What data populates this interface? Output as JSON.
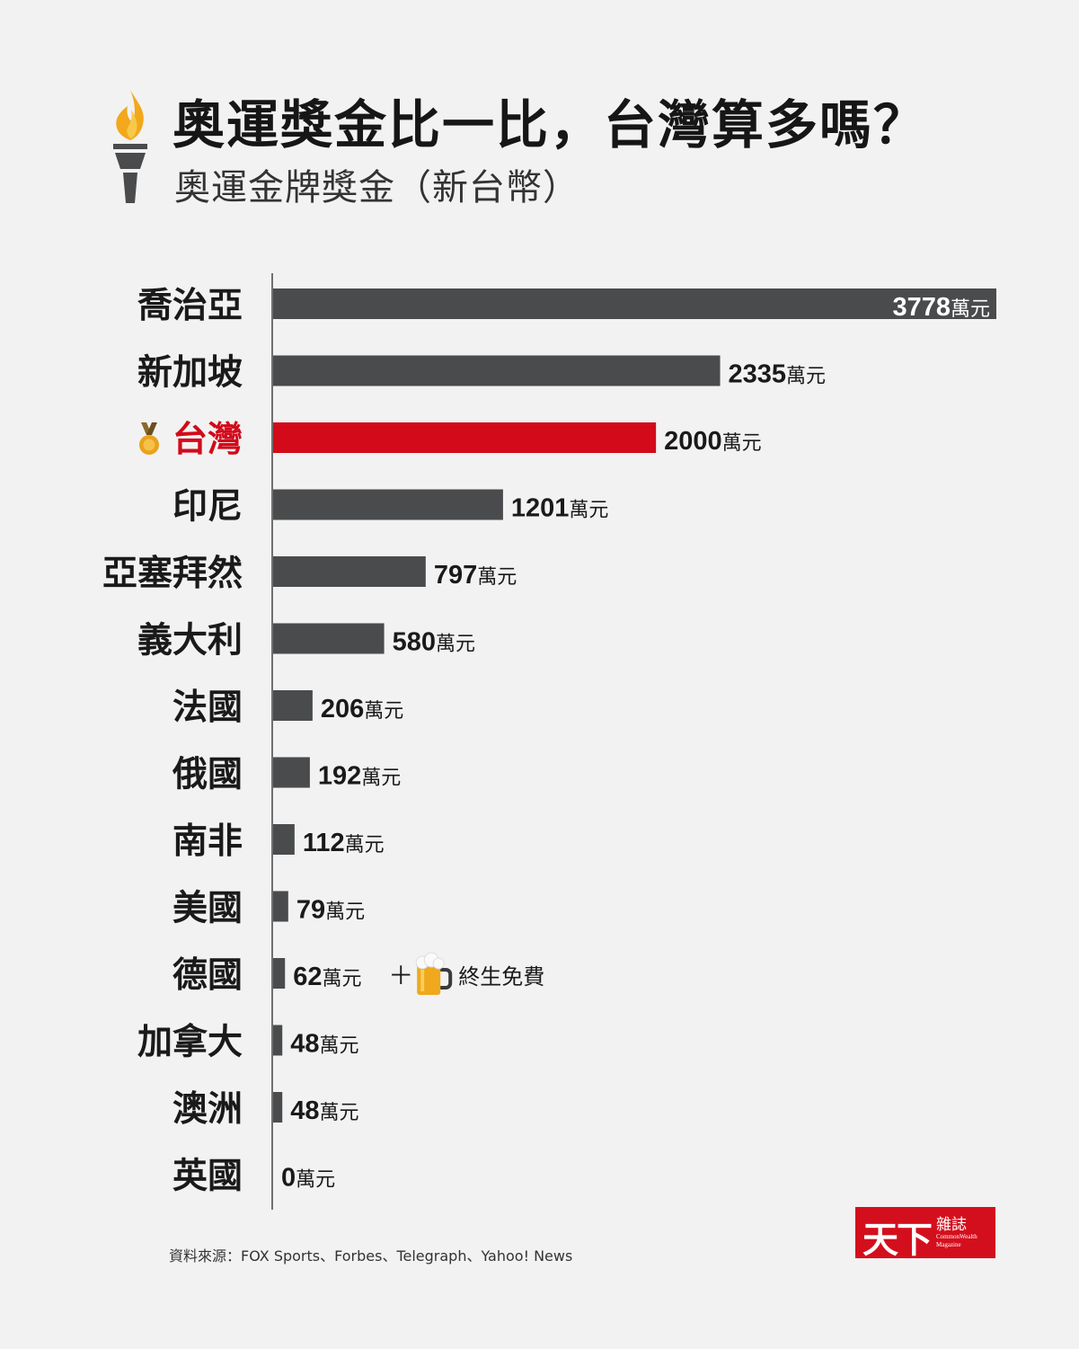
{
  "header": {
    "title": "奧運獎金比一比，台灣算多嗎？",
    "subtitle": "奧運金牌獎金（新台幣）"
  },
  "chart_data": {
    "type": "bar",
    "orientation": "horizontal",
    "categories": [
      "喬治亞",
      "新加坡",
      "台灣",
      "印尼",
      "亞塞拜然",
      "義大利",
      "法國",
      "俄國",
      "南非",
      "美國",
      "德國",
      "加拿大",
      "澳洲",
      "英國"
    ],
    "values": [
      3778,
      2335,
      2000,
      1201,
      797,
      580,
      206,
      192,
      112,
      79,
      62,
      48,
      48,
      0
    ],
    "unit": "萬元",
    "highlight_category": "台灣",
    "xlim": [
      0,
      3778
    ],
    "grid": false,
    "annotations": [
      {
        "category": "德國",
        "plus": "＋",
        "text": "終生免費",
        "icon": "beer-mug-icon"
      }
    ]
  },
  "colors": {
    "bar": "#4a4b4d",
    "highlight": "#d20a1a",
    "label": "#1a1a1a",
    "medal": "#e9a21c"
  },
  "footer": {
    "source": "資料來源：FOX Sports、Forbes、Telegraph、Yahoo! News",
    "logo_main": "天下",
    "logo_sub": "雜誌",
    "logo_en": "CommonWealth Magazine"
  }
}
